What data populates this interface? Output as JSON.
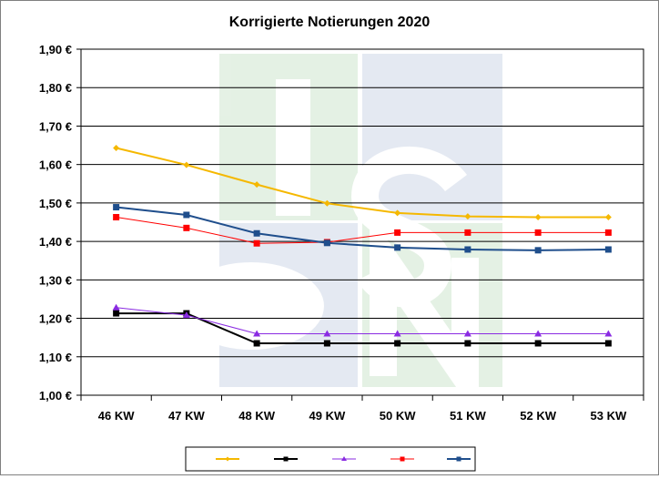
{
  "chart_data": {
    "type": "line",
    "title": "Korrigierte Notierungen 2020",
    "xlabel": "",
    "ylabel": "",
    "categories": [
      "46 KW",
      "47 KW",
      "48 KW",
      "49 KW",
      "50 KW",
      "51 KW",
      "52 KW",
      "53 KW"
    ],
    "ylim": [
      1.0,
      1.9
    ],
    "y_ticks": [
      "1,00 €",
      "1,10 €",
      "1,20 €",
      "1,30 €",
      "1,40 €",
      "1,50 €",
      "1,60 €",
      "1,70 €",
      "1,80 €",
      "1,90 €"
    ],
    "grid": true,
    "legend_position": "bottom",
    "series": [
      {
        "color": "#f5b800",
        "marker": "diamond",
        "width": 2,
        "values": [
          1.643,
          1.599,
          1.548,
          1.499,
          1.474,
          1.465,
          1.463,
          1.463
        ]
      },
      {
        "color": "#000000",
        "marker": "square",
        "width": 2,
        "values": [
          1.213,
          1.213,
          1.135,
          1.135,
          1.135,
          1.135,
          1.135,
          1.135
        ]
      },
      {
        "color": "#8a2be2",
        "marker": "triangle",
        "width": 1,
        "values": [
          1.228,
          1.208,
          1.16,
          1.16,
          1.16,
          1.16,
          1.16,
          1.16
        ]
      },
      {
        "color": "#ff0000",
        "marker": "square",
        "width": 1,
        "values": [
          1.463,
          1.435,
          1.395,
          1.398,
          1.423,
          1.423,
          1.423,
          1.423
        ]
      },
      {
        "color": "#1f4e8c",
        "marker": "square",
        "width": 2,
        "values": [
          1.489,
          1.469,
          1.421,
          1.396,
          1.384,
          1.379,
          1.377,
          1.379
        ]
      }
    ]
  }
}
